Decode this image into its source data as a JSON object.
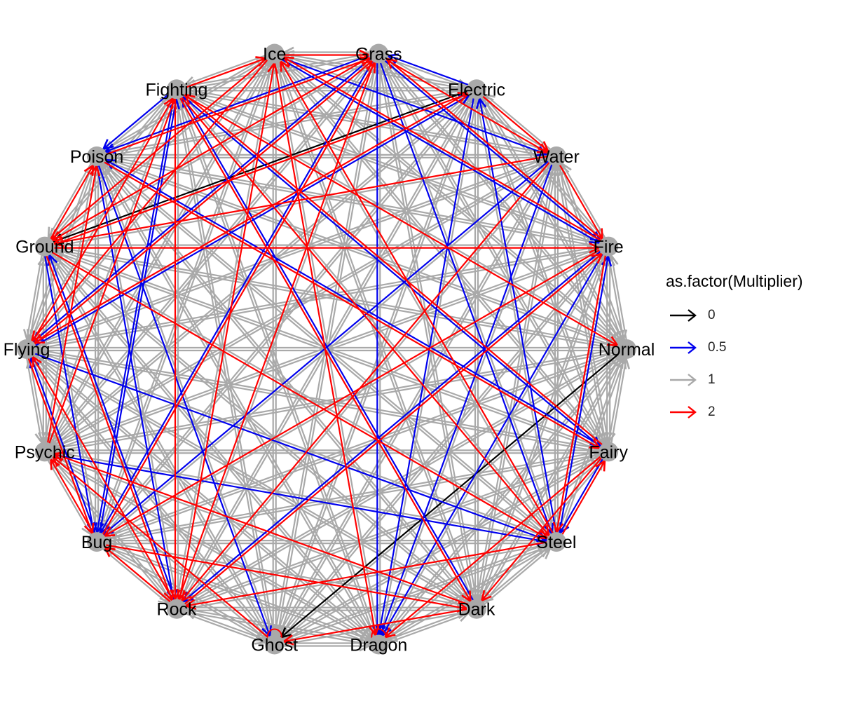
{
  "legend": {
    "title": "as.factor(Multiplier)",
    "items": [
      {
        "label": "0",
        "color": "#000000"
      },
      {
        "label": "0.5",
        "color": "#0000EE"
      },
      {
        "label": "1",
        "color": "#A9A9A9"
      },
      {
        "label": "2",
        "color": "#FF0000"
      }
    ]
  },
  "nodes": [
    "Normal",
    "Fire",
    "Water",
    "Electric",
    "Grass",
    "Ice",
    "Fighting",
    "Poison",
    "Ground",
    "Flying",
    "Psychic",
    "Bug",
    "Rock",
    "Ghost",
    "Dragon",
    "Dark",
    "Steel",
    "Fairy"
  ],
  "edges": [
    {
      "from": "Electric",
      "to": "Ground",
      "multiplier": 0
    },
    {
      "from": "Normal",
      "to": "Ghost",
      "multiplier": 0
    },
    {
      "from": "Grass",
      "to": "Fire",
      "multiplier": 0.5
    },
    {
      "from": "Grass",
      "to": "Flying",
      "multiplier": 0.5
    },
    {
      "from": "Grass",
      "to": "Poison",
      "multiplier": 0.5
    },
    {
      "from": "Grass",
      "to": "Bug",
      "multiplier": 0.5
    },
    {
      "from": "Grass",
      "to": "Dragon",
      "multiplier": 0.5
    },
    {
      "from": "Grass",
      "to": "Steel",
      "multiplier": 0.5
    },
    {
      "from": "Ice",
      "to": "Water",
      "multiplier": 0.5
    },
    {
      "from": "Ice",
      "to": "Fire",
      "multiplier": 0.5
    },
    {
      "from": "Fighting",
      "to": "Poison",
      "multiplier": 0.5
    },
    {
      "from": "Fighting",
      "to": "Bug",
      "multiplier": 0.5
    },
    {
      "from": "Fighting",
      "to": "Fairy",
      "multiplier": 0.5
    },
    {
      "from": "Electric",
      "to": "Grass",
      "multiplier": 0.5
    },
    {
      "from": "Electric",
      "to": "Dragon",
      "multiplier": 0.5
    },
    {
      "from": "Water",
      "to": "Bug",
      "multiplier": 0.5
    },
    {
      "from": "Water",
      "to": "Dragon",
      "multiplier": 0.5
    },
    {
      "from": "Poison",
      "to": "Rock",
      "multiplier": 0.5
    },
    {
      "from": "Poison",
      "to": "Ghost",
      "multiplier": 0.5
    },
    {
      "from": "Fire",
      "to": "Rock",
      "multiplier": 0.5
    },
    {
      "from": "Fire",
      "to": "Dragon",
      "multiplier": 0.5
    },
    {
      "from": "Bug",
      "to": "Fighting",
      "multiplier": 0.5
    },
    {
      "from": "Flying",
      "to": "Electric",
      "multiplier": 0.5
    },
    {
      "from": "Flying",
      "to": "Steel",
      "multiplier": 0.5
    },
    {
      "from": "Ground",
      "to": "Bug",
      "multiplier": 0.5
    },
    {
      "from": "Psychic",
      "to": "Steel",
      "multiplier": 0.5
    },
    {
      "from": "Bug",
      "to": "Flying",
      "multiplier": 0.5
    },
    {
      "from": "Rock",
      "to": "Ground",
      "multiplier": 0.5
    },
    {
      "from": "Dark",
      "to": "Fighting",
      "multiplier": 0.5
    },
    {
      "from": "Steel",
      "to": "Fire",
      "multiplier": 0.5
    },
    {
      "from": "Steel",
      "to": "Electric",
      "multiplier": 0.5
    },
    {
      "from": "Fairy",
      "to": "Steel",
      "multiplier": 0.5
    },
    {
      "from": "Fairy",
      "to": "Poison",
      "multiplier": 0.5
    },
    {
      "from": "Ice",
      "to": "Grass",
      "multiplier": 2
    },
    {
      "from": "Ice",
      "to": "Ground",
      "multiplier": 2
    },
    {
      "from": "Ice",
      "to": "Flying",
      "multiplier": 2
    },
    {
      "from": "Ice",
      "to": "Dragon",
      "multiplier": 2
    },
    {
      "from": "Grass",
      "to": "Water",
      "multiplier": 2
    },
    {
      "from": "Grass",
      "to": "Ground",
      "multiplier": 2
    },
    {
      "from": "Grass",
      "to": "Rock",
      "multiplier": 2
    },
    {
      "from": "Electric",
      "to": "Water",
      "multiplier": 2
    },
    {
      "from": "Electric",
      "to": "Flying",
      "multiplier": 2
    },
    {
      "from": "Water",
      "to": "Fire",
      "multiplier": 2
    },
    {
      "from": "Water",
      "to": "Ground",
      "multiplier": 2
    },
    {
      "from": "Water",
      "to": "Rock",
      "multiplier": 2
    },
    {
      "from": "Fire",
      "to": "Grass",
      "multiplier": 2
    },
    {
      "from": "Fire",
      "to": "Ice",
      "multiplier": 2
    },
    {
      "from": "Fire",
      "to": "Bug",
      "multiplier": 2
    },
    {
      "from": "Fire",
      "to": "Steel",
      "multiplier": 2
    },
    {
      "from": "Fighting",
      "to": "Normal",
      "multiplier": 2
    },
    {
      "from": "Fighting",
      "to": "Ice",
      "multiplier": 2
    },
    {
      "from": "Fighting",
      "to": "Rock",
      "multiplier": 2
    },
    {
      "from": "Fighting",
      "to": "Dark",
      "multiplier": 2
    },
    {
      "from": "Fighting",
      "to": "Steel",
      "multiplier": 2
    },
    {
      "from": "Poison",
      "to": "Grass",
      "multiplier": 2
    },
    {
      "from": "Poison",
      "to": "Fairy",
      "multiplier": 2
    },
    {
      "from": "Ground",
      "to": "Fire",
      "multiplier": 2
    },
    {
      "from": "Ground",
      "to": "Electric",
      "multiplier": 2
    },
    {
      "from": "Ground",
      "to": "Poison",
      "multiplier": 2
    },
    {
      "from": "Ground",
      "to": "Rock",
      "multiplier": 2
    },
    {
      "from": "Ground",
      "to": "Steel",
      "multiplier": 2
    },
    {
      "from": "Flying",
      "to": "Grass",
      "multiplier": 2
    },
    {
      "from": "Flying",
      "to": "Fighting",
      "multiplier": 2
    },
    {
      "from": "Flying",
      "to": "Bug",
      "multiplier": 2
    },
    {
      "from": "Psychic",
      "to": "Fighting",
      "multiplier": 2
    },
    {
      "from": "Psychic",
      "to": "Poison",
      "multiplier": 2
    },
    {
      "from": "Bug",
      "to": "Grass",
      "multiplier": 2
    },
    {
      "from": "Bug",
      "to": "Psychic",
      "multiplier": 2
    },
    {
      "from": "Bug",
      "to": "Dark",
      "multiplier": 2
    },
    {
      "from": "Rock",
      "to": "Fire",
      "multiplier": 2
    },
    {
      "from": "Rock",
      "to": "Ice",
      "multiplier": 2
    },
    {
      "from": "Rock",
      "to": "Flying",
      "multiplier": 2
    },
    {
      "from": "Rock",
      "to": "Bug",
      "multiplier": 2
    },
    {
      "from": "Ghost",
      "to": "Psychic",
      "multiplier": 2
    },
    {
      "from": "Ghost",
      "to": "Ghost",
      "multiplier": 2
    },
    {
      "from": "Dragon",
      "to": "Dragon",
      "multiplier": 2
    },
    {
      "from": "Dark",
      "to": "Psychic",
      "multiplier": 2
    },
    {
      "from": "Dark",
      "to": "Ghost",
      "multiplier": 2
    },
    {
      "from": "Steel",
      "to": "Ice",
      "multiplier": 2
    },
    {
      "from": "Steel",
      "to": "Rock",
      "multiplier": 2
    },
    {
      "from": "Steel",
      "to": "Fairy",
      "multiplier": 2
    },
    {
      "from": "Fairy",
      "to": "Fighting",
      "multiplier": 2
    },
    {
      "from": "Fairy",
      "to": "Dragon",
      "multiplier": 2
    },
    {
      "from": "Fairy",
      "to": "Dark",
      "multiplier": 2
    }
  ]
}
